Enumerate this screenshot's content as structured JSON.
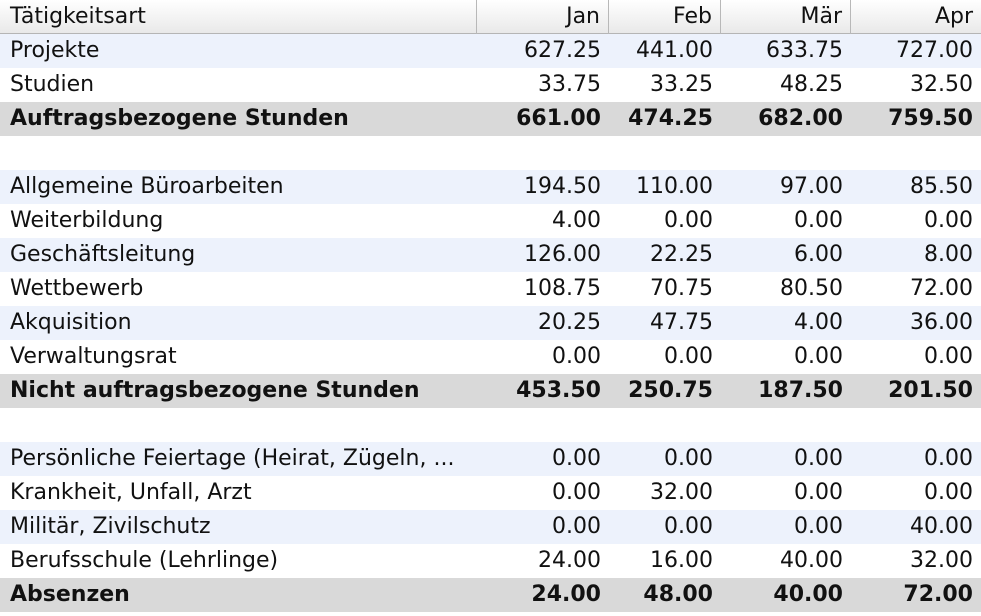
{
  "table": {
    "columns": [
      "Tätigkeitsart",
      "Jan",
      "Feb",
      "Mär",
      "Apr"
    ],
    "rows": [
      {
        "label": "Projekte",
        "values": [
          "627.25",
          "441.00",
          "633.75",
          "727.00"
        ],
        "kind": "odd"
      },
      {
        "label": "Studien",
        "values": [
          "33.75",
          "33.25",
          "48.25",
          "32.50"
        ],
        "kind": "even"
      },
      {
        "label": "Auftragsbezogene Stunden",
        "values": [
          "661.00",
          "474.25",
          "682.00",
          "759.50"
        ],
        "kind": "total"
      },
      {
        "label": "",
        "values": [
          "",
          "",
          "",
          ""
        ],
        "kind": "even"
      },
      {
        "label": "Allgemeine Büroarbeiten",
        "values": [
          "194.50",
          "110.00",
          "97.00",
          "85.50"
        ],
        "kind": "odd"
      },
      {
        "label": "Weiterbildung",
        "values": [
          "4.00",
          "0.00",
          "0.00",
          "0.00"
        ],
        "kind": "even"
      },
      {
        "label": "Geschäftsleitung",
        "values": [
          "126.00",
          "22.25",
          "6.00",
          "8.00"
        ],
        "kind": "odd"
      },
      {
        "label": "Wettbewerb",
        "values": [
          "108.75",
          "70.75",
          "80.50",
          "72.00"
        ],
        "kind": "even"
      },
      {
        "label": "Akquisition",
        "values": [
          "20.25",
          "47.75",
          "4.00",
          "36.00"
        ],
        "kind": "odd"
      },
      {
        "label": "Verwaltungsrat",
        "values": [
          "0.00",
          "0.00",
          "0.00",
          "0.00"
        ],
        "kind": "even"
      },
      {
        "label": "Nicht auftragsbezogene Stunden",
        "values": [
          "453.50",
          "250.75",
          "187.50",
          "201.50"
        ],
        "kind": "total"
      },
      {
        "label": "",
        "values": [
          "",
          "",
          "",
          ""
        ],
        "kind": "even"
      },
      {
        "label": "Persönliche Feiertage (Heirat, Zügeln, ...",
        "values": [
          "0.00",
          "0.00",
          "0.00",
          "0.00"
        ],
        "kind": "odd"
      },
      {
        "label": "Krankheit, Unfall, Arzt",
        "values": [
          "0.00",
          "32.00",
          "0.00",
          "0.00"
        ],
        "kind": "even"
      },
      {
        "label": "Militär, Zivilschutz",
        "values": [
          "0.00",
          "0.00",
          "0.00",
          "40.00"
        ],
        "kind": "odd"
      },
      {
        "label": "Berufsschule (Lehrlinge)",
        "values": [
          "24.00",
          "16.00",
          "40.00",
          "32.00"
        ],
        "kind": "even"
      },
      {
        "label": "Absenzen",
        "values": [
          "24.00",
          "48.00",
          "40.00",
          "72.00"
        ],
        "kind": "total"
      }
    ]
  }
}
